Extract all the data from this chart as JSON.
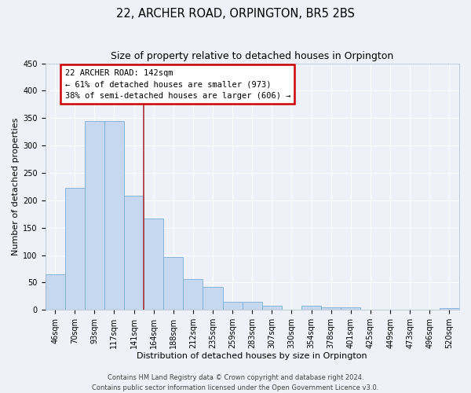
{
  "title": "22, ARCHER ROAD, ORPINGTON, BR5 2BS",
  "subtitle": "Size of property relative to detached houses in Orpington",
  "xlabel": "Distribution of detached houses by size in Orpington",
  "ylabel": "Number of detached properties",
  "bar_labels": [
    "46sqm",
    "70sqm",
    "93sqm",
    "117sqm",
    "141sqm",
    "164sqm",
    "188sqm",
    "212sqm",
    "235sqm",
    "259sqm",
    "283sqm",
    "307sqm",
    "330sqm",
    "354sqm",
    "378sqm",
    "401sqm",
    "425sqm",
    "449sqm",
    "473sqm",
    "496sqm",
    "520sqm"
  ],
  "bar_values": [
    65,
    222,
    345,
    345,
    208,
    167,
    97,
    57,
    42,
    14,
    14,
    7,
    0,
    7,
    5,
    5,
    0,
    0,
    0,
    0,
    3
  ],
  "bar_color": "#c5d8f0",
  "bar_edge_color": "#7bafd4",
  "ylim": [
    0,
    450
  ],
  "yticks": [
    0,
    50,
    100,
    150,
    200,
    250,
    300,
    350,
    400,
    450
  ],
  "property_bin_index": 4,
  "annotation_title": "22 ARCHER ROAD: 142sqm",
  "annotation_line1": "← 61% of detached houses are smaller (973)",
  "annotation_line2": "38% of semi-detached houses are larger (606) →",
  "annotation_box_facecolor": "#ffffff",
  "annotation_box_edgecolor": "#cc0000",
  "vline_color": "#aa3333",
  "background_color": "#eef2f8",
  "grid_color": "#ffffff",
  "title_fontsize": 10.5,
  "axis_label_fontsize": 8,
  "tick_fontsize": 7,
  "annotation_fontsize": 7.5,
  "footer_fontsize": 6,
  "footer_line1": "Contains HM Land Registry data © Crown copyright and database right 2024.",
  "footer_line2": "Contains public sector information licensed under the Open Government Licence v3.0."
}
